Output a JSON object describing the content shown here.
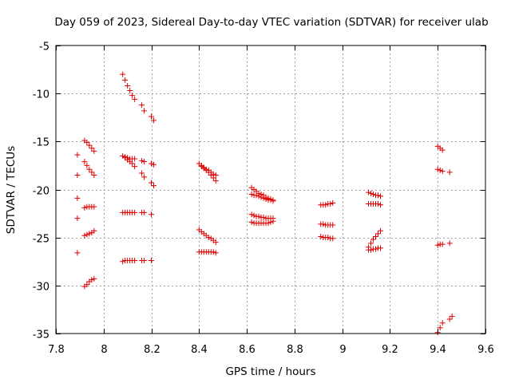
{
  "chart_data": {
    "type": "scatter",
    "title": "Day 059 of 2023, Sidereal Day-to-day VTEC variation (SDTVAR) for receiver ulab",
    "xlabel": "GPS time / hours",
    "ylabel": "SDTVAR / TECUs",
    "xlim": [
      7.8,
      9.6
    ],
    "ylim": [
      -35,
      -5
    ],
    "xticks": [
      7.8,
      8,
      8.2,
      8.4,
      8.6,
      8.8,
      9,
      9.2,
      9.4,
      9.6
    ],
    "yticks": [
      -35,
      -30,
      -25,
      -20,
      -15,
      -10,
      -5
    ],
    "xtick_labels": [
      "7.8",
      "8",
      "8.2",
      "8.4",
      "8.6",
      "8.8",
      "9",
      "9.2",
      "9.4",
      "9.6"
    ],
    "ytick_labels": [
      "-35",
      "-30",
      "-25",
      "-20",
      "-15",
      "-10",
      "-5"
    ],
    "grid": true,
    "marker": "+",
    "color": "#e00000",
    "series": [
      {
        "name": "s1",
        "x": [
          7.89,
          7.89,
          7.89,
          7.89,
          7.89
        ],
        "y": [
          -16.4,
          -18.5,
          -20.9,
          -23.0,
          -26.6
        ]
      },
      {
        "name": "s2",
        "x": [
          7.92,
          7.93,
          7.94,
          7.95,
          7.96
        ],
        "y": [
          -14.9,
          -15.1,
          -15.4,
          -15.7,
          -16.0
        ]
      },
      {
        "name": "s3",
        "x": [
          7.92,
          7.93,
          7.94,
          7.95,
          7.96
        ],
        "y": [
          -17.1,
          -17.5,
          -17.9,
          -18.2,
          -18.5
        ]
      },
      {
        "name": "s4",
        "x": [
          7.92,
          7.93,
          7.94,
          7.95,
          7.96
        ],
        "y": [
          -21.9,
          -21.8,
          -21.8,
          -21.8,
          -21.8
        ]
      },
      {
        "name": "s5",
        "x": [
          7.92,
          7.93,
          7.94,
          7.95,
          7.96
        ],
        "y": [
          -24.8,
          -24.7,
          -24.6,
          -24.5,
          -24.3
        ]
      },
      {
        "name": "s6",
        "x": [
          7.92,
          7.93,
          7.94,
          7.95,
          7.96
        ],
        "y": [
          -30.1,
          -29.9,
          -29.6,
          -29.4,
          -29.3
        ]
      },
      {
        "name": "s7",
        "x": [
          8.08,
          8.09,
          8.1,
          8.11,
          8.12,
          8.13,
          8.16,
          8.17,
          8.2,
          8.21
        ],
        "y": [
          -8.0,
          -8.6,
          -9.2,
          -9.7,
          -10.2,
          -10.6,
          -11.2,
          -11.8,
          -12.4,
          -12.8
        ]
      },
      {
        "name": "s8",
        "x": [
          8.08,
          8.09,
          8.1,
          8.11,
          8.12,
          8.13,
          8.16,
          8.17,
          8.2,
          8.21
        ],
        "y": [
          -16.5,
          -16.7,
          -16.9,
          -17.1,
          -17.3,
          -17.6,
          -18.3,
          -18.7,
          -19.3,
          -19.6
        ]
      },
      {
        "name": "s9",
        "x": [
          8.09,
          8.1,
          8.11,
          8.12,
          8.13,
          8.16,
          8.17,
          8.2,
          8.21
        ],
        "y": [
          -16.6,
          -16.7,
          -16.8,
          -16.8,
          -16.8,
          -17.0,
          -17.1,
          -17.3,
          -17.4
        ]
      },
      {
        "name": "s10",
        "x": [
          8.08,
          8.09,
          8.1,
          8.11,
          8.12,
          8.13,
          8.16,
          8.17,
          8.2
        ],
        "y": [
          -22.4,
          -22.4,
          -22.4,
          -22.4,
          -22.4,
          -22.4,
          -22.4,
          -22.4,
          -22.6
        ]
      },
      {
        "name": "s11",
        "x": [
          8.08,
          8.09,
          8.1,
          8.11,
          8.12,
          8.13,
          8.16,
          8.17,
          8.2
        ],
        "y": [
          -27.5,
          -27.4,
          -27.4,
          -27.4,
          -27.4,
          -27.4,
          -27.4,
          -27.4,
          -27.4
        ]
      },
      {
        "name": "s12",
        "x": [
          8.4,
          8.41,
          8.42,
          8.43,
          8.44,
          8.45,
          8.46,
          8.47
        ],
        "y": [
          -17.3,
          -17.5,
          -17.7,
          -17.9,
          -18.0,
          -18.2,
          -18.4,
          -18.5
        ]
      },
      {
        "name": "s13",
        "x": [
          8.41,
          8.42,
          8.43,
          8.44,
          8.45,
          8.46,
          8.47
        ],
        "y": [
          -17.6,
          -17.8,
          -18.0,
          -18.2,
          -18.5,
          -18.8,
          -19.1
        ]
      },
      {
        "name": "s14",
        "x": [
          8.4,
          8.41,
          8.42,
          8.43,
          8.44,
          8.45,
          8.46,
          8.47
        ],
        "y": [
          -24.2,
          -24.4,
          -24.6,
          -24.8,
          -25.0,
          -25.1,
          -25.3,
          -25.5
        ]
      },
      {
        "name": "s15",
        "x": [
          8.4,
          8.41,
          8.42,
          8.43,
          8.44,
          8.45,
          8.46,
          8.47
        ],
        "y": [
          -26.5,
          -26.5,
          -26.5,
          -26.5,
          -26.5,
          -26.5,
          -26.5,
          -26.6
        ]
      },
      {
        "name": "s16",
        "x": [
          8.62,
          8.63,
          8.64,
          8.65,
          8.66,
          8.67,
          8.68,
          8.69,
          8.7,
          8.71
        ],
        "y": [
          -19.8,
          -20.0,
          -20.2,
          -20.4,
          -20.5,
          -20.6,
          -20.8,
          -20.9,
          -21.0,
          -21.1
        ]
      },
      {
        "name": "s17",
        "x": [
          8.62,
          8.63,
          8.64,
          8.65,
          8.66,
          8.67,
          8.68,
          8.69,
          8.7,
          8.71
        ],
        "y": [
          -20.5,
          -20.6,
          -20.6,
          -20.7,
          -20.8,
          -20.9,
          -21.0,
          -21.1,
          -21.1,
          -21.2
        ]
      },
      {
        "name": "s18",
        "x": [
          8.62,
          8.63,
          8.64,
          8.65,
          8.66,
          8.67,
          8.68,
          8.69,
          8.7,
          8.71
        ],
        "y": [
          -22.6,
          -22.7,
          -22.8,
          -22.8,
          -22.9,
          -22.9,
          -23.0,
          -23.0,
          -23.0,
          -23.0
        ]
      },
      {
        "name": "s19",
        "x": [
          8.62,
          8.63,
          8.64,
          8.65,
          8.66,
          8.67,
          8.68,
          8.69,
          8.7,
          8.71
        ],
        "y": [
          -23.4,
          -23.5,
          -23.5,
          -23.5,
          -23.5,
          -23.5,
          -23.5,
          -23.5,
          -23.4,
          -23.3
        ]
      },
      {
        "name": "s20",
        "x": [
          8.91,
          8.92,
          8.93,
          8.94,
          8.95,
          8.96
        ],
        "y": [
          -21.6,
          -21.6,
          -21.6,
          -21.5,
          -21.5,
          -21.4
        ]
      },
      {
        "name": "s21",
        "x": [
          8.91,
          8.92,
          8.93,
          8.94,
          8.95,
          8.96
        ],
        "y": [
          -23.6,
          -23.6,
          -23.7,
          -23.7,
          -23.7,
          -23.7
        ]
      },
      {
        "name": "s22",
        "x": [
          8.91,
          8.92,
          8.93,
          8.94,
          8.95,
          8.96
        ],
        "y": [
          -24.9,
          -25.0,
          -25.0,
          -25.0,
          -25.1,
          -25.1
        ]
      },
      {
        "name": "s23",
        "x": [
          9.11,
          9.12,
          9.13,
          9.14,
          9.15,
          9.16
        ],
        "y": [
          -20.3,
          -20.4,
          -20.5,
          -20.6,
          -20.6,
          -20.7
        ]
      },
      {
        "name": "s24",
        "x": [
          9.11,
          9.12,
          9.13,
          9.14,
          9.15,
          9.16
        ],
        "y": [
          -21.5,
          -21.5,
          -21.5,
          -21.5,
          -21.5,
          -21.6
        ]
      },
      {
        "name": "s25",
        "x": [
          9.11,
          9.12,
          9.13,
          9.14,
          9.15,
          9.16
        ],
        "y": [
          -26.0,
          -25.6,
          -25.2,
          -24.9,
          -24.6,
          -24.3
        ]
      },
      {
        "name": "s26",
        "x": [
          9.11,
          9.12,
          9.13,
          9.14,
          9.15,
          9.16
        ],
        "y": [
          -26.3,
          -26.3,
          -26.2,
          -26.2,
          -26.1,
          -26.1
        ]
      },
      {
        "name": "s27",
        "x": [
          9.4,
          9.41,
          9.42
        ],
        "y": [
          -15.5,
          -15.7,
          -15.9
        ]
      },
      {
        "name": "s28",
        "x": [
          9.4,
          9.41,
          9.42,
          9.45
        ],
        "y": [
          -17.9,
          -18.0,
          -18.1,
          -18.2
        ]
      },
      {
        "name": "s29",
        "x": [
          9.4,
          9.41,
          9.42,
          9.45
        ],
        "y": [
          -25.8,
          -25.7,
          -25.7,
          -25.6
        ]
      },
      {
        "name": "s30",
        "x": [
          9.4,
          9.41,
          9.42,
          9.45,
          9.46
        ],
        "y": [
          -34.9,
          -34.4,
          -33.9,
          -33.5,
          -33.2
        ]
      }
    ]
  }
}
